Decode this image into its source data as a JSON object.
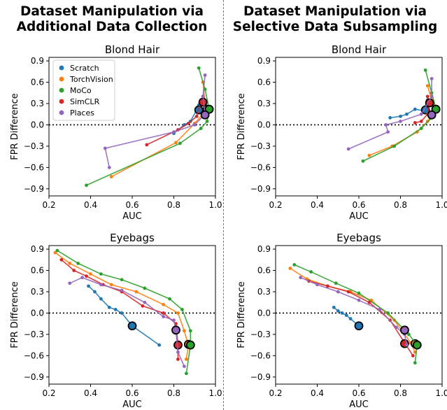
{
  "columns": [
    {
      "title_line1": "Dataset Manipulation via",
      "title_line2": "Additional Data Collection"
    },
    {
      "title_line1": "Dataset Manipulation via",
      "title_line2": "Selective Data Subsampling"
    }
  ],
  "colors": {
    "Scratch": "#1f77b4",
    "TorchVision": "#ff7f0e",
    "MoCo": "#2ca02c",
    "SimCLR": "#d62728",
    "Places": "#9467bd"
  },
  "legend": {
    "placement": "upper-left of top-left panel",
    "entries": [
      "Scratch",
      "TorchVision",
      "MoCo",
      "SimCLR",
      "Places"
    ]
  },
  "chart_data": [
    {
      "type": "line",
      "title": "Blond Hair",
      "xlabel": "AUC",
      "ylabel": "FPR Difference",
      "xlim": [
        0.2,
        1.0
      ],
      "ylim": [
        -1.0,
        0.95
      ],
      "xticks": [
        "0.2",
        "0.4",
        "0.6",
        "0.8",
        "1.0"
      ],
      "yticks": [
        "-0.9",
        "-0.6",
        "-0.3",
        "0.0",
        "0.3",
        "0.6",
        "0.9"
      ],
      "reference_line_y": 0,
      "series": [
        {
          "name": "Scratch",
          "x": [
            0.93,
            0.92,
            0.91,
            0.88,
            0.85,
            0.8
          ],
          "y": [
            0.35,
            0.28,
            0.21,
            0.05,
            0.0,
            -0.12
          ],
          "baseline": [
            0.92,
            0.21
          ]
        },
        {
          "name": "TorchVision",
          "x": [
            0.94,
            0.95,
            0.96,
            0.9,
            0.81,
            0.5
          ],
          "y": [
            0.6,
            0.3,
            0.22,
            0.02,
            -0.25,
            -0.73
          ],
          "baseline": [
            0.96,
            0.22
          ]
        },
        {
          "name": "MoCo",
          "x": [
            0.92,
            0.95,
            0.97,
            0.96,
            0.93,
            0.83,
            0.38
          ],
          "y": [
            0.8,
            0.5,
            0.22,
            0.05,
            -0.05,
            -0.26,
            -0.85
          ],
          "baseline": [
            0.97,
            0.22
          ]
        },
        {
          "name": "SimCLR",
          "x": [
            0.94,
            0.93,
            0.91,
            0.87,
            0.82,
            0.67
          ],
          "y": [
            0.4,
            0.32,
            0.12,
            0.02,
            -0.07,
            -0.28
          ],
          "baseline": [
            0.94,
            0.32
          ]
        },
        {
          "name": "Places",
          "x": [
            0.95,
            0.94,
            0.95,
            0.9,
            0.8,
            0.47,
            0.49
          ],
          "y": [
            0.7,
            0.4,
            0.15,
            0.0,
            -0.1,
            -0.33,
            -0.6
          ],
          "baseline": [
            0.95,
            0.14
          ]
        }
      ]
    },
    {
      "type": "line",
      "title": "Blond Hair",
      "xlabel": "AUC",
      "ylabel": "FPR Difference",
      "xlim": [
        0.2,
        1.0
      ],
      "ylim": [
        -1.0,
        0.95
      ],
      "xticks": [
        "0.2",
        "0.4",
        "0.6",
        "0.8",
        "1.0"
      ],
      "yticks": [
        "-0.9",
        "-0.6",
        "-0.3",
        "0.0",
        "0.3",
        "0.6",
        "0.9"
      ],
      "reference_line_y": 0,
      "series": [
        {
          "name": "Scratch",
          "x": [
            0.93,
            0.91,
            0.87,
            0.83,
            0.8,
            0.75
          ],
          "y": [
            0.35,
            0.2,
            0.22,
            0.15,
            0.12,
            0.1
          ],
          "baseline": [
            0.92,
            0.21
          ]
        },
        {
          "name": "TorchVision",
          "x": [
            0.93,
            0.95,
            0.97,
            0.93,
            0.88,
            0.76,
            0.65
          ],
          "y": [
            0.55,
            0.35,
            0.22,
            0.05,
            -0.1,
            -0.3,
            -0.43
          ],
          "baseline": [
            0.97,
            0.22
          ]
        },
        {
          "name": "MoCo",
          "x": [
            0.92,
            0.95,
            0.97,
            0.95,
            0.9,
            0.77,
            0.62
          ],
          "y": [
            0.77,
            0.45,
            0.23,
            0.1,
            -0.05,
            -0.3,
            -0.51
          ],
          "baseline": [
            0.97,
            0.22
          ]
        },
        {
          "name": "SimCLR",
          "x": [
            0.93,
            0.94,
            0.93,
            0.9,
            0.87
          ],
          "y": [
            0.4,
            0.31,
            0.15,
            0.05,
            0.03
          ],
          "baseline": [
            0.94,
            0.31
          ]
        },
        {
          "name": "Places",
          "x": [
            0.95,
            0.95,
            0.9,
            0.8,
            0.73,
            0.74,
            0.55
          ],
          "y": [
            0.65,
            0.4,
            0.15,
            0.05,
            0.0,
            -0.1,
            -0.34
          ],
          "baseline": [
            0.95,
            0.14
          ]
        }
      ]
    },
    {
      "type": "line",
      "title": "Eyebags",
      "xlabel": "AUC",
      "ylabel": "FPR Difference",
      "xlim": [
        0.2,
        1.0
      ],
      "ylim": [
        -1.0,
        0.95
      ],
      "xticks": [
        "0.2",
        "0.4",
        "0.6",
        "0.8",
        "1.0"
      ],
      "yticks": [
        "-0.9",
        "-0.6",
        "-0.3",
        "0.0",
        "0.3",
        "0.6",
        "0.9"
      ],
      "reference_line_y": 0,
      "series": [
        {
          "name": "Scratch",
          "x": [
            0.39,
            0.42,
            0.45,
            0.49,
            0.52,
            0.55,
            0.6,
            0.73
          ],
          "y": [
            0.38,
            0.3,
            0.2,
            0.08,
            0.05,
            0.0,
            -0.18,
            -0.45
          ],
          "baseline": [
            0.6,
            -0.18
          ]
        },
        {
          "name": "TorchVision",
          "x": [
            0.23,
            0.3,
            0.4,
            0.5,
            0.62,
            0.75,
            0.82,
            0.85,
            0.87,
            0.86
          ],
          "y": [
            0.85,
            0.7,
            0.55,
            0.4,
            0.3,
            0.12,
            0.0,
            -0.25,
            -0.45,
            -0.65
          ],
          "baseline": [
            0.87,
            -0.44
          ]
        },
        {
          "name": "MoCo",
          "x": [
            0.24,
            0.34,
            0.45,
            0.55,
            0.66,
            0.78,
            0.84,
            0.88,
            0.88,
            0.86
          ],
          "y": [
            0.88,
            0.7,
            0.55,
            0.47,
            0.35,
            0.2,
            0.05,
            -0.25,
            -0.45,
            -0.85
          ],
          "baseline": [
            0.88,
            -0.45
          ]
        },
        {
          "name": "SimCLR",
          "x": [
            0.26,
            0.32,
            0.38,
            0.46,
            0.55,
            0.65,
            0.75,
            0.81,
            0.82,
            0.82
          ],
          "y": [
            0.75,
            0.6,
            0.52,
            0.4,
            0.3,
            0.1,
            0.0,
            -0.15,
            -0.45,
            -0.65
          ],
          "baseline": [
            0.82,
            -0.45
          ]
        },
        {
          "name": "Places",
          "x": [
            0.3,
            0.36,
            0.45,
            0.55,
            0.66,
            0.75,
            0.8,
            0.81,
            0.82,
            0.85
          ],
          "y": [
            0.42,
            0.5,
            0.4,
            0.32,
            0.15,
            -0.05,
            -0.1,
            -0.25,
            -0.55,
            -0.75
          ],
          "baseline": [
            0.81,
            -0.24
          ]
        }
      ]
    },
    {
      "type": "line",
      "title": "Eyebags",
      "xlabel": "AUC",
      "ylabel": "FPR Difference",
      "xlim": [
        0.2,
        1.0
      ],
      "ylim": [
        -1.0,
        0.95
      ],
      "xticks": [
        "0.2",
        "0.4",
        "0.6",
        "0.8",
        "1.0"
      ],
      "yticks": [
        "-0.9",
        "-0.6",
        "-0.3",
        "0.0",
        "0.3",
        "0.6",
        "0.9"
      ],
      "reference_line_y": 0,
      "series": [
        {
          "name": "Scratch",
          "x": [
            0.48,
            0.5,
            0.52,
            0.54,
            0.56,
            0.6
          ],
          "y": [
            0.08,
            0.03,
            0.0,
            -0.03,
            -0.08,
            -0.18
          ],
          "baseline": [
            0.6,
            -0.18
          ]
        },
        {
          "name": "TorchVision",
          "x": [
            0.27,
            0.35,
            0.45,
            0.56,
            0.66,
            0.77,
            0.85,
            0.87
          ],
          "y": [
            0.63,
            0.48,
            0.38,
            0.3,
            0.18,
            -0.1,
            -0.42,
            -0.55
          ],
          "baseline": [
            0.87,
            -0.43
          ]
        },
        {
          "name": "MoCo",
          "x": [
            0.29,
            0.37,
            0.49,
            0.6,
            0.74,
            0.84,
            0.88,
            0.87
          ],
          "y": [
            0.68,
            0.58,
            0.42,
            0.28,
            0.0,
            -0.3,
            -0.45,
            -0.7
          ],
          "baseline": [
            0.88,
            -0.45
          ]
        },
        {
          "name": "SimCLR",
          "x": [
            0.36,
            0.45,
            0.55,
            0.65,
            0.75,
            0.82,
            0.86
          ],
          "y": [
            0.45,
            0.38,
            0.3,
            0.15,
            -0.1,
            -0.42,
            -0.6
          ],
          "baseline": [
            0.82,
            -0.43
          ]
        },
        {
          "name": "Places",
          "x": [
            0.32,
            0.4,
            0.5,
            0.6,
            0.7,
            0.78,
            0.82,
            0.83
          ],
          "y": [
            0.5,
            0.4,
            0.3,
            0.18,
            0.05,
            -0.2,
            -0.3,
            -0.45
          ],
          "baseline": [
            0.82,
            -0.24
          ]
        }
      ]
    }
  ]
}
